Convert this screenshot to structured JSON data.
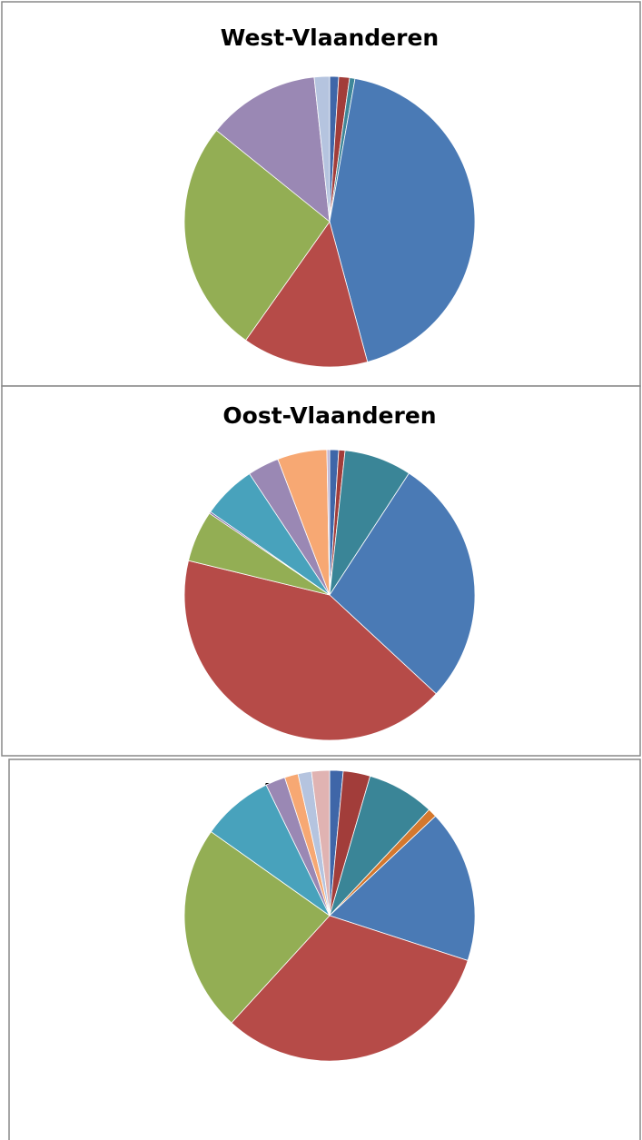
{
  "chart_data": [
    {
      "type": "pie",
      "title": "West-Vlaanderen",
      "values": [
        1,
        1.2,
        0.6,
        43,
        14,
        26,
        12.5,
        1.7
      ],
      "colors": [
        "#3f66a8",
        "#a23d3a",
        "#3e8799",
        "#4a7ab5",
        "#b64b48",
        "#93ae54",
        "#9a88b4",
        "#b5c4df"
      ]
    },
    {
      "type": "pie",
      "title": "Oost-Vlaanderen",
      "values": [
        1,
        0.7,
        7.5,
        27.7,
        41.9,
        5.7,
        0.2,
        6,
        3.5,
        5.5,
        0.3
      ],
      "colors": [
        "#3f66a8",
        "#a23d3a",
        "#3a8597",
        "#4a7ab5",
        "#b64b48",
        "#93ae54",
        "#7a63a0",
        "#48a2bc",
        "#9a88b4",
        "#f7a873",
        "#c0b2d2"
      ]
    },
    {
      "type": "pie",
      "title": "Antwerpen",
      "values": [
        1.5,
        3,
        7.5,
        1,
        17,
        31.8,
        23,
        8,
        2.2,
        1.5,
        1.5,
        2
      ],
      "colors": [
        "#3f66a8",
        "#a23d3a",
        "#3a8597",
        "#d4782e",
        "#4a7ab5",
        "#b64b48",
        "#93ae54",
        "#48a2bc",
        "#9a88b4",
        "#f7a873",
        "#b5c4df",
        "#e0b3b2"
      ]
    }
  ]
}
